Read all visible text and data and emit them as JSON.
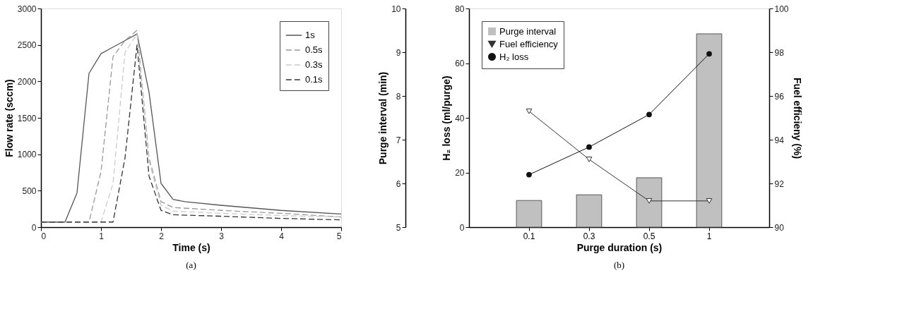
{
  "chart_data": [
    {
      "type": "line",
      "xlabel": "Time (s)",
      "ylabel": "Flow rate (sccm)",
      "xlim": [
        0,
        5
      ],
      "xticks": [
        0,
        1,
        2,
        3,
        4,
        5
      ],
      "ylim": [
        0,
        3000
      ],
      "yticks": [
        0,
        500,
        1000,
        1500,
        2000,
        2500,
        3000
      ],
      "grid": false,
      "legend": "top right",
      "marker": "none",
      "annotations": [
        "(a)"
      ],
      "series": [
        {
          "name": "1s",
          "color": "#555555",
          "line_style": "solid",
          "x": [
            0,
            0.4,
            0.6,
            0.8,
            1.0,
            1.2,
            1.4,
            1.6,
            1.8,
            2.0,
            2.2,
            2.4,
            3,
            4,
            5
          ],
          "values": [
            70,
            70,
            470,
            2110,
            2380,
            2470,
            2560,
            2650,
            1850,
            600,
            380,
            350,
            300,
            230,
            180
          ]
        },
        {
          "name": "0.5s",
          "color": "#999999",
          "line_style": "dashed",
          "x": [
            0,
            0.8,
            1.0,
            1.2,
            1.4,
            1.6,
            1.8,
            2.0,
            2.2,
            3,
            4,
            5
          ],
          "values": [
            70,
            70,
            760,
            2340,
            2560,
            2700,
            950,
            350,
            270,
            230,
            190,
            140
          ]
        },
        {
          "name": "0.3s",
          "color": "#cccccc",
          "line_style": "dashed",
          "x": [
            0,
            1.0,
            1.2,
            1.4,
            1.6,
            1.8,
            2.0,
            2.2,
            3,
            4,
            5
          ],
          "values": [
            70,
            70,
            600,
            2400,
            2650,
            900,
            300,
            220,
            190,
            160,
            140
          ]
        },
        {
          "name": "0.1s",
          "color": "#333333",
          "line_style": "dashed",
          "x": [
            0,
            1.2,
            1.4,
            1.6,
            1.8,
            2.0,
            2.2,
            3,
            4,
            5
          ],
          "values": [
            70,
            70,
            950,
            2500,
            700,
            230,
            170,
            150,
            120,
            100
          ]
        }
      ]
    },
    {
      "type": "bar",
      "xlabel": "Purge duration (s)",
      "ylabel": "H₂ loss (ml/purge)",
      "y2label": "Fuel efficieny (%)",
      "y3label": "Purge interval (min)",
      "categories": [
        "0.1",
        "0.3",
        "0.5",
        "1"
      ],
      "ylim": [
        0,
        80
      ],
      "yticks": [
        0,
        20,
        40,
        60,
        80
      ],
      "y2lim": [
        90,
        100
      ],
      "y2ticks": [
        90,
        92,
        94,
        96,
        98,
        100
      ],
      "y3lim": [
        5,
        10
      ],
      "y3ticks": [
        5,
        6,
        7,
        8,
        9,
        10
      ],
      "grid": false,
      "legend": "top left",
      "annotations": [
        "(b)"
      ],
      "series": [
        {
          "name": "Purge interval",
          "type": "bar",
          "axis": "y3",
          "color": "#c0c0c0",
          "values": [
            5.61,
            5.74,
            6.13,
            9.42
          ]
        },
        {
          "name": "Fuel efficiency",
          "type": "line",
          "axis": "y2",
          "marker": "triangle",
          "color": "#333333",
          "values": [
            95.3,
            93.1,
            91.2,
            91.2
          ]
        },
        {
          "name": "H₂ loss",
          "type": "line",
          "axis": "y",
          "marker": "circle",
          "color": "#111111",
          "values": [
            19.2,
            29.3,
            41.2,
            63.4
          ]
        }
      ]
    }
  ]
}
